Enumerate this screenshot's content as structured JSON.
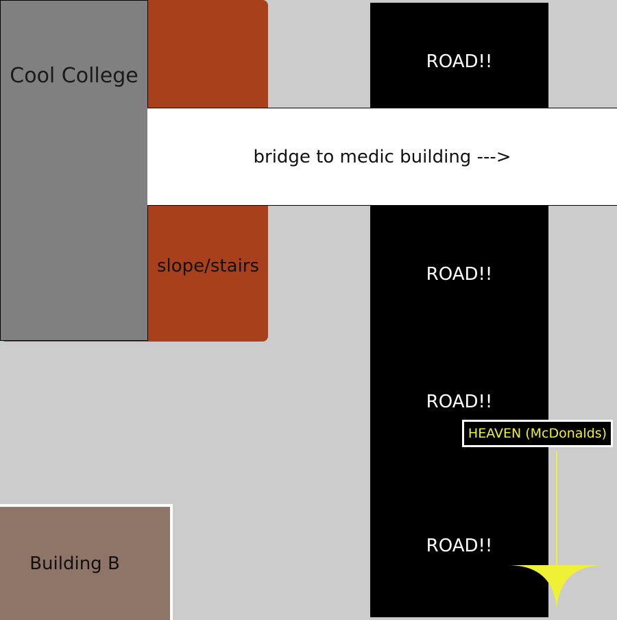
{
  "labels": {
    "college": "Cool College",
    "slope": "slope/stairs",
    "bridge": "bridge to medic building --->",
    "road": [
      "ROAD!!",
      "ROAD!!",
      "ROAD!!",
      "ROAD!!"
    ],
    "heaven": "HEAVEN (McDonalds)",
    "building_b": "Building B"
  },
  "colors": {
    "background": "#cccccc",
    "slope": "#a8411b",
    "college": "#808080",
    "road": "#000000",
    "bridge": "#ffffff",
    "heaven_text": "#f0f036",
    "building_b": "#8f7468"
  }
}
